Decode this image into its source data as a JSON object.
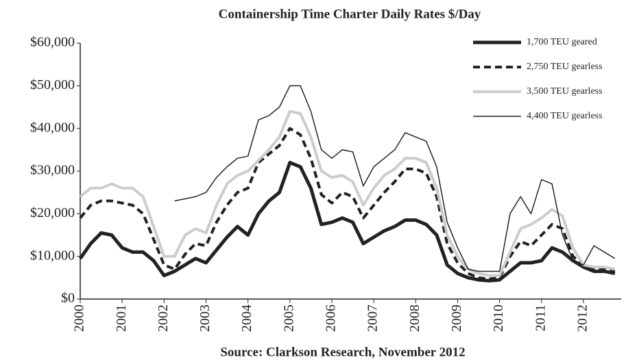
{
  "chart_data": {
    "type": "line",
    "title": "Containership Time Charter Daily Rates $/Day",
    "source": "Source: Clarkson Research, November 2012",
    "x": [
      2000,
      2000.25,
      2000.5,
      2000.75,
      2001,
      2001.25,
      2001.5,
      2001.75,
      2002,
      2002.25,
      2002.5,
      2002.75,
      2003,
      2003.25,
      2003.5,
      2003.75,
      2004,
      2004.25,
      2004.5,
      2004.75,
      2005,
      2005.25,
      2005.5,
      2005.75,
      2006,
      2006.25,
      2006.5,
      2006.75,
      2007,
      2007.25,
      2007.5,
      2007.75,
      2008,
      2008.25,
      2008.5,
      2008.75,
      2009,
      2009.25,
      2009.5,
      2009.75,
      2010,
      2010.25,
      2010.5,
      2010.75,
      2011,
      2011.25,
      2011.5,
      2011.75,
      2012,
      2012.25,
      2012.5,
      2012.75
    ],
    "series": [
      {
        "name": "1,700 TEU geared",
        "color": "#222222",
        "linewidth": 5,
        "style": "solid",
        "values": [
          9500,
          13000,
          15500,
          15000,
          12000,
          11000,
          11000,
          9000,
          5500,
          6500,
          8000,
          9500,
          8500,
          11500,
          14500,
          17000,
          15000,
          20000,
          23000,
          25000,
          32000,
          31000,
          26000,
          17500,
          18000,
          19000,
          18000,
          13000,
          14500,
          16000,
          17000,
          18500,
          18500,
          17500,
          15000,
          8000,
          6000,
          5000,
          4500,
          4300,
          4500,
          6500,
          8500,
          8500,
          9000,
          12000,
          11000,
          9000,
          7500,
          6500,
          6500,
          6000
        ]
      },
      {
        "name": "2,750 TEU gearless",
        "color": "#222222",
        "linewidth": 4,
        "style": "dashed",
        "values": [
          19000,
          22000,
          23000,
          23000,
          22500,
          22000,
          20000,
          14000,
          8000,
          7000,
          10500,
          13000,
          12500,
          18000,
          22000,
          25000,
          26000,
          32000,
          34000,
          36000,
          40000,
          38500,
          33000,
          24500,
          22500,
          25000,
          24000,
          19000,
          22000,
          25000,
          27500,
          30500,
          30500,
          29500,
          24000,
          13000,
          8500,
          6000,
          5000,
          4700,
          5000,
          10000,
          13500,
          12500,
          15000,
          17500,
          16500,
          10000,
          8000,
          7000,
          7000,
          6500
        ]
      },
      {
        "name": "3,500 TEU gearless",
        "color": "#cccccc",
        "linewidth": 4,
        "style": "solid",
        "values": [
          24000,
          26000,
          26000,
          27000,
          26000,
          26000,
          24000,
          17000,
          10000,
          10000,
          15000,
          16500,
          15500,
          22000,
          27000,
          29000,
          30000,
          32500,
          35000,
          38000,
          44000,
          43500,
          38000,
          30000,
          28500,
          29000,
          27500,
          22000,
          26000,
          29000,
          30500,
          33000,
          33000,
          32000,
          26000,
          15000,
          10000,
          7000,
          6000,
          5500,
          5500,
          11000,
          16500,
          17500,
          19000,
          21000,
          19500,
          12000,
          8000,
          7500,
          7500,
          7000
        ]
      },
      {
        "name": "4,400 TEU gearless",
        "color": "#222222",
        "linewidth": 1.5,
        "style": "solid",
        "values": [
          null,
          null,
          null,
          null,
          null,
          null,
          null,
          null,
          null,
          23000,
          23500,
          24000,
          25000,
          28500,
          31000,
          33000,
          33500,
          42000,
          43000,
          45000,
          50000,
          50000,
          44000,
          35000,
          33000,
          35000,
          34500,
          26500,
          31000,
          33000,
          35000,
          39000,
          38000,
          37000,
          31000,
          18000,
          12000,
          7000,
          6500,
          6500,
          6500,
          20000,
          24000,
          20000,
          28000,
          27000,
          15000,
          9000,
          8000,
          12500,
          11000,
          9500
        ]
      }
    ],
    "xlim": [
      2000,
      2012.9
    ],
    "xticks": [
      2000,
      2001,
      2002,
      2003,
      2004,
      2005,
      2006,
      2007,
      2008,
      2009,
      2010,
      2011,
      2012
    ],
    "ylim": [
      0,
      60000
    ],
    "yticks": [
      {
        "value": 0,
        "label": "$0"
      },
      {
        "value": 10000,
        "label": "$10,000"
      },
      {
        "value": 20000,
        "label": "$20,000"
      },
      {
        "value": 30000,
        "label": "$30,000"
      },
      {
        "value": 40000,
        "label": "$40,000"
      },
      {
        "value": 50000,
        "label": "$50,000"
      },
      {
        "value": 60000,
        "label": "$60,000"
      }
    ],
    "grid": false,
    "legend": "upper right"
  }
}
